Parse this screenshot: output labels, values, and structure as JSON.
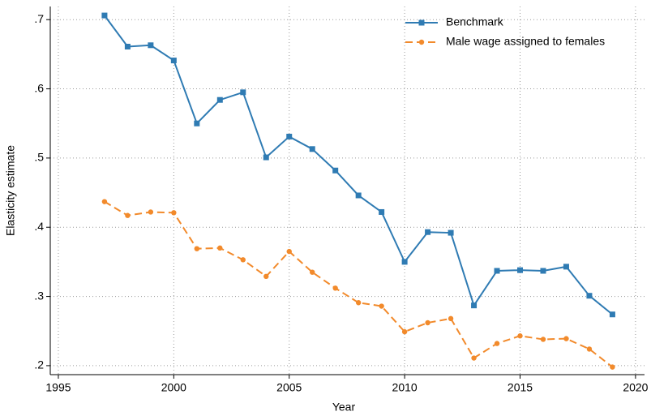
{
  "chart_data": {
    "type": "line",
    "x_label": "Year",
    "y_label": "Elasticity estimate",
    "x": [
      1997,
      1998,
      1999,
      2000,
      2001,
      2002,
      2003,
      2004,
      2005,
      2006,
      2007,
      2008,
      2009,
      2010,
      2011,
      2012,
      2013,
      2014,
      2015,
      2016,
      2017,
      2018,
      2019
    ],
    "series": [
      {
        "name": "Benchmark",
        "color": "#2f7bb3",
        "marker": "square",
        "dashed": false,
        "values": [
          0.706,
          0.661,
          0.663,
          0.641,
          0.55,
          0.584,
          0.595,
          0.501,
          0.531,
          0.513,
          0.482,
          0.446,
          0.422,
          0.35,
          0.393,
          0.392,
          0.287,
          0.337,
          0.338,
          0.337,
          0.343,
          0.301,
          0.274
        ]
      },
      {
        "name": "Male wage assigned to females",
        "color": "#f28a2b",
        "marker": "circle",
        "dashed": true,
        "values": [
          0.437,
          0.417,
          0.422,
          0.421,
          0.369,
          0.37,
          0.353,
          0.329,
          0.365,
          0.335,
          0.312,
          0.291,
          0.286,
          0.249,
          0.262,
          0.268,
          0.211,
          0.232,
          0.243,
          0.238,
          0.239,
          0.224,
          0.198
        ]
      }
    ],
    "xlim": [
      1994.65,
      2020.39
    ],
    "xticks": [
      1995,
      2000,
      2005,
      2010,
      2015,
      2020
    ],
    "ylim": [
      0.187,
      0.719
    ],
    "yticks": [
      {
        "value": 0.2,
        "label": ".2"
      },
      {
        "value": 0.3,
        "label": ".3"
      },
      {
        "value": 0.4,
        "label": ".4"
      },
      {
        "value": 0.5,
        "label": ".5"
      },
      {
        "value": 0.6,
        "label": ".6"
      },
      {
        "value": 0.7,
        "label": ".7"
      }
    ],
    "grid": true,
    "legend": "top-right"
  }
}
